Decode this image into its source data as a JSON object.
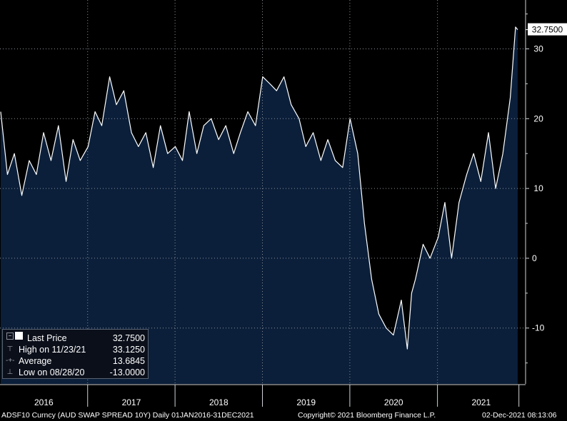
{
  "chart_data": {
    "type": "area",
    "title": "",
    "ylim": [
      -18,
      37
    ],
    "y_ticks": [
      -10,
      0,
      10,
      20,
      30
    ],
    "year_labels": [
      "2016",
      "2017",
      "2018",
      "2019",
      "2020",
      "2021"
    ],
    "last_value_label": "32.7500",
    "series": [
      {
        "x": [
          "2016-01-04",
          "2016-02-01",
          "2016-03-01",
          "2016-04-01",
          "2016-05-02",
          "2016-06-01",
          "2016-07-01",
          "2016-08-01",
          "2016-09-01",
          "2016-10-03",
          "2016-11-01",
          "2016-12-01",
          "2017-01-03",
          "2017-02-01",
          "2017-03-01",
          "2017-04-03",
          "2017-05-01",
          "2017-06-01",
          "2017-07-03",
          "2017-08-01",
          "2017-09-01",
          "2017-10-02",
          "2017-11-01",
          "2017-12-01",
          "2018-01-02",
          "2018-02-01",
          "2018-03-01",
          "2018-04-02",
          "2018-05-01",
          "2018-06-01",
          "2018-07-02",
          "2018-08-01",
          "2018-09-03",
          "2018-10-01",
          "2018-11-01",
          "2018-12-03",
          "2019-01-02",
          "2019-02-01",
          "2019-03-01",
          "2019-04-01",
          "2019-05-01",
          "2019-06-03",
          "2019-07-01",
          "2019-08-01",
          "2019-09-02",
          "2019-10-01",
          "2019-11-01",
          "2019-12-02",
          "2020-01-02",
          "2020-02-03",
          "2020-03-02",
          "2020-04-01",
          "2020-05-01",
          "2020-06-01",
          "2020-07-01",
          "2020-08-03",
          "2020-08-28",
          "2020-09-15",
          "2020-10-01",
          "2020-11-02",
          "2020-12-01",
          "2021-01-04",
          "2021-02-01",
          "2021-03-01",
          "2021-04-01",
          "2021-05-03",
          "2021-06-01",
          "2021-07-01",
          "2021-08-02",
          "2021-09-01",
          "2021-10-01",
          "2021-11-01",
          "2021-11-23",
          "2021-12-02"
        ],
        "values": [
          21,
          12,
          15,
          9,
          14,
          12,
          18,
          14,
          19,
          11,
          17,
          14,
          16,
          21,
          19,
          26,
          22,
          24,
          18,
          16,
          18,
          13,
          19,
          15,
          16,
          14,
          21,
          15,
          19,
          20,
          17,
          19,
          15,
          18,
          21,
          19,
          26,
          25,
          24,
          26,
          22,
          20,
          16,
          18,
          14,
          17,
          14,
          13,
          20,
          15,
          5,
          -3,
          -8,
          -10,
          -11,
          -6,
          -13,
          -5,
          -3,
          2,
          0,
          3,
          8,
          0,
          8,
          12,
          15,
          11,
          18,
          10,
          15,
          23,
          33.125,
          32.75
        ]
      }
    ]
  },
  "legend": {
    "last_price_label": "Last Price",
    "last_price_value": "32.7500",
    "high_label": "High on 11/23/21",
    "high_value": "33.1250",
    "average_label": "Average",
    "average_value": "13.6845",
    "low_label": "Low on 08/28/20",
    "low_value": "-13.0000"
  },
  "footer": {
    "ticker": "ADSF10 Curncy (AUD SWAP SPREAD 10Y)  Daily 01JAN2016-31DEC2021",
    "copyright": "Copyright© 2021 Bloomberg Finance L.P.",
    "timestamp": "02-Dec-2021 08:13:06"
  },
  "colors": {
    "background": "#000000",
    "area_fill": "#0b1f3a",
    "line": "#ffffff",
    "grid": "#8a8f98"
  }
}
